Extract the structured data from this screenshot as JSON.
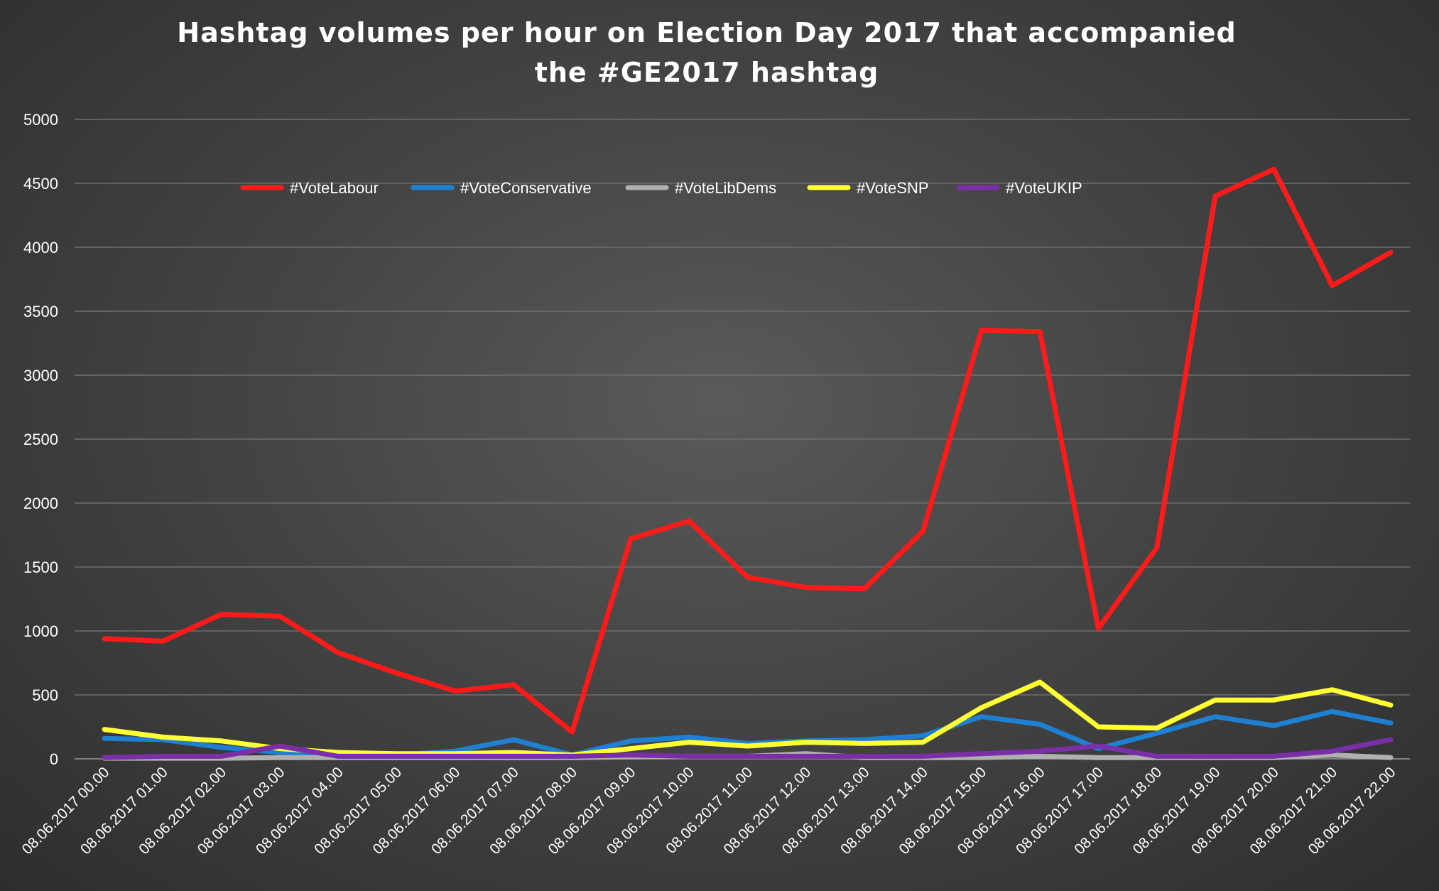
{
  "chart_data": {
    "type": "line",
    "title": "Hashtag volumes per hour on Election Day 2017 that accompanied the #GE2017 hashtag",
    "xlabel": "",
    "ylabel": "",
    "ylim": [
      0,
      5000
    ],
    "yticks": [
      0,
      500,
      1000,
      1500,
      2000,
      2500,
      3000,
      3500,
      4000,
      4500,
      5000
    ],
    "grid": true,
    "legend_position": "top-center",
    "categories": [
      "08.06.2017 00.00",
      "08.06.2017 01.00",
      "08.06.2017 02.00",
      "08.06.2017 03.00",
      "08.06.2017 04.00",
      "08.06.2017 05.00",
      "08.06.2017 06.00",
      "08.06.2017 07.00",
      "08.06.2017 08.00",
      "08.06.2017 09.00",
      "08.06.2017 10.00",
      "08.06.2017 11.00",
      "08.06.2017 12.00",
      "08.06.2017 13.00",
      "08.06.2017 14.00",
      "08.06.2017 15.00",
      "08.06.2017 16.00",
      "08.06.2017 17.00",
      "08.06.2017 18.00",
      "08.06.2017 19.00",
      "08.06.2017 20.00",
      "08.06.2017 21.00",
      "08.06.2017 22.00"
    ],
    "series": [
      {
        "name": "#VoteLabour",
        "color": "#ff1a1a",
        "values": [
          940,
          920,
          1130,
          1115,
          830,
          670,
          530,
          580,
          210,
          1720,
          1860,
          1420,
          1340,
          1330,
          1780,
          3350,
          3340,
          1020,
          1650,
          4400,
          4610,
          3700,
          3960
        ]
      },
      {
        "name": "#VoteConservative",
        "color": "#1f7fd1",
        "values": [
          160,
          150,
          90,
          50,
          40,
          30,
          60,
          150,
          30,
          140,
          170,
          120,
          140,
          150,
          180,
          330,
          270,
          80,
          200,
          330,
          260,
          370,
          280
        ]
      },
      {
        "name": "#VoteLibDems",
        "color": "#b0b0b0",
        "values": [
          5,
          5,
          5,
          10,
          10,
          10,
          10,
          10,
          10,
          15,
          20,
          20,
          40,
          10,
          10,
          10,
          20,
          10,
          10,
          10,
          10,
          30,
          10
        ]
      },
      {
        "name": "#VoteSNP",
        "color": "#ffff33",
        "values": [
          230,
          170,
          140,
          80,
          50,
          40,
          40,
          50,
          30,
          80,
          130,
          100,
          130,
          120,
          130,
          400,
          600,
          250,
          240,
          460,
          460,
          540,
          420
        ]
      },
      {
        "name": "#VoteUKIP",
        "color": "#7a2fa8",
        "values": [
          10,
          20,
          20,
          100,
          20,
          20,
          20,
          20,
          20,
          30,
          20,
          20,
          20,
          20,
          20,
          40,
          60,
          100,
          20,
          20,
          20,
          60,
          150
        ]
      }
    ]
  }
}
